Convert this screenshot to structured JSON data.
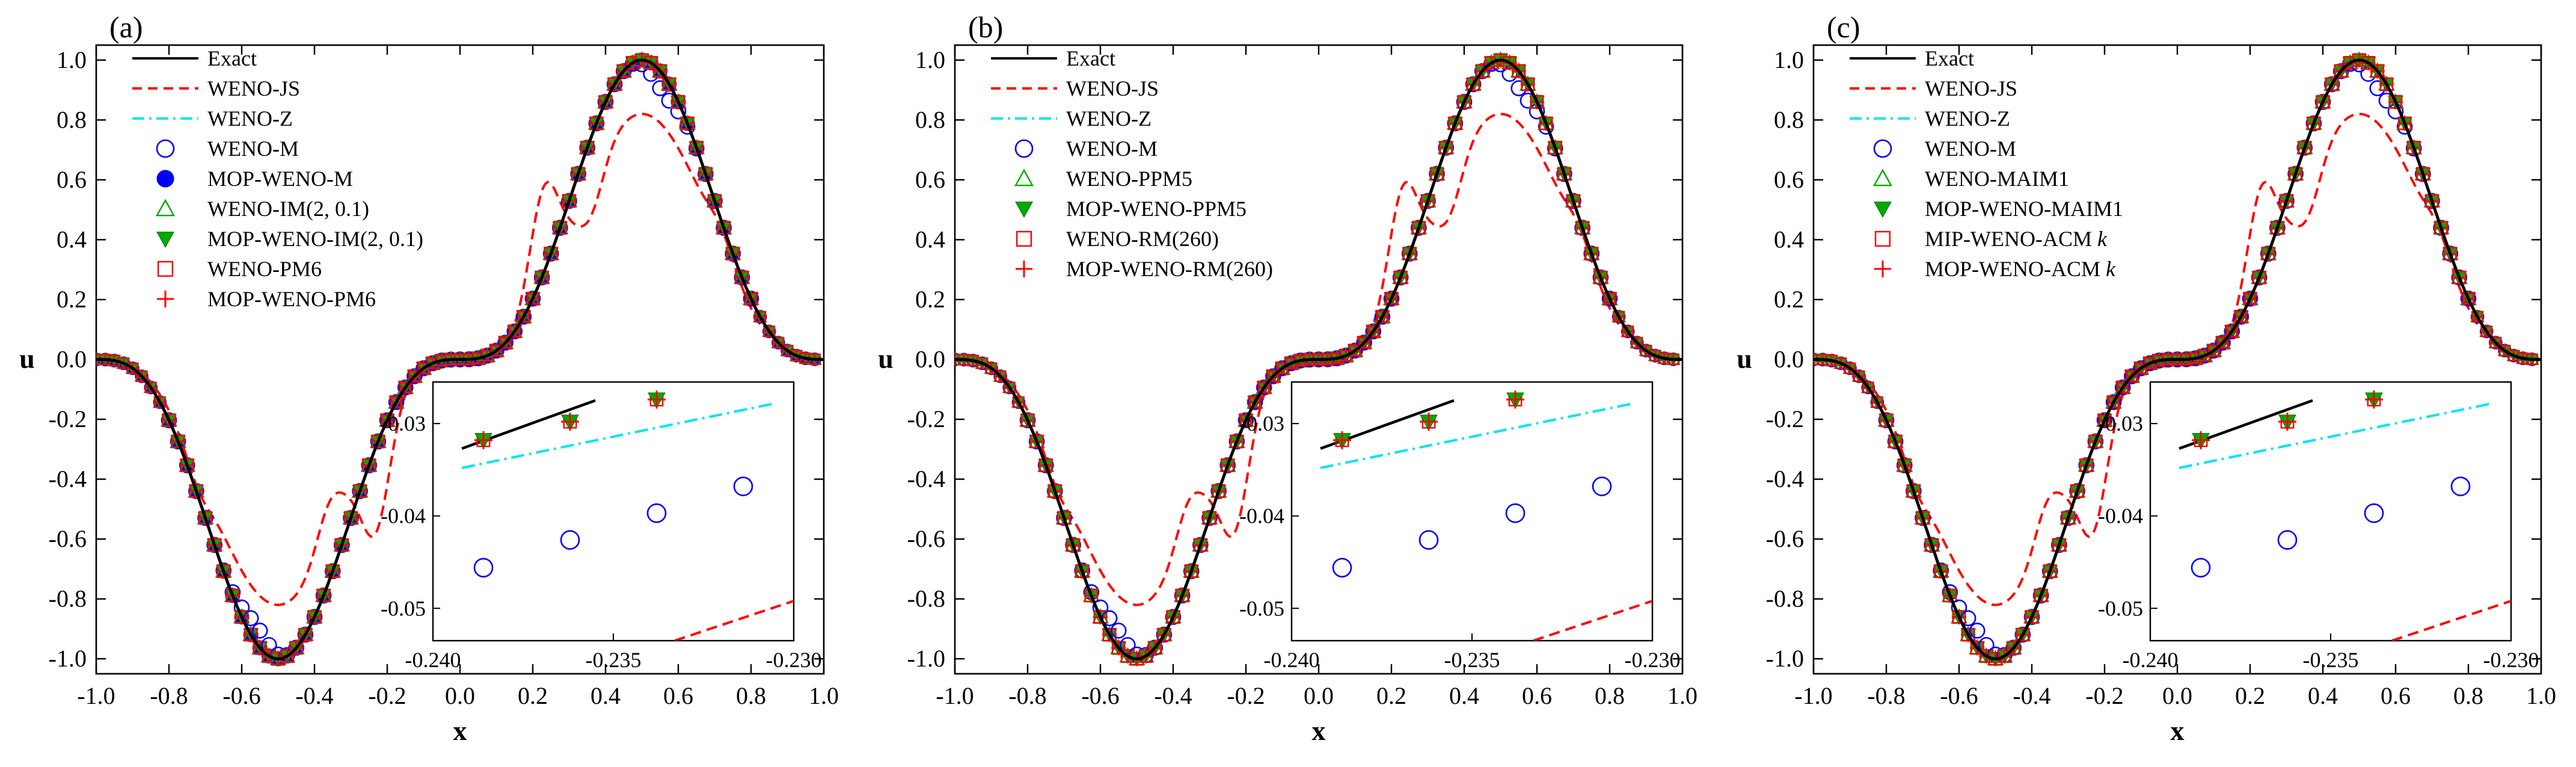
{
  "chart_data": [
    {
      "type": "line",
      "panel_label": "(a)",
      "xlabel": "x",
      "ylabel": "u",
      "xlim": [
        -1.0,
        1.0
      ],
      "ylim": [
        -1.05,
        1.05
      ],
      "xticks": [
        "-1.0",
        "-0.8",
        "-0.6",
        "-0.4",
        "-0.2",
        "0.0",
        "0.2",
        "0.4",
        "0.6",
        "0.8",
        "1.0"
      ],
      "yticks": [
        "-1.0",
        "-0.8",
        "-0.6",
        "-0.4",
        "-0.2",
        "0.0",
        "0.2",
        "0.4",
        "0.6",
        "0.8",
        "1.0"
      ],
      "legend": [
        "Exact",
        "WENO-JS",
        "WENO-Z",
        "WENO-M",
        "MOP-WENO-M",
        "WENO-IM(2, 0.1)",
        "MOP-WENO-IM(2, 0.1)",
        "WENO-PM6",
        "MOP-WENO-PM6"
      ],
      "legend_position": "top-left",
      "grid": false,
      "inset": {
        "xlim": [
          -0.24,
          -0.23
        ],
        "ylim": [
          -0.0535,
          -0.0255
        ],
        "xticks": [
          "-0.240",
          "-0.235",
          "-0.230"
        ],
        "yticks": [
          "-0.03",
          "-0.04",
          "-0.05"
        ],
        "position": "bottom-right"
      }
    },
    {
      "type": "line",
      "panel_label": "(b)",
      "xlabel": "x",
      "ylabel": "u",
      "xlim": [
        -1.0,
        1.0
      ],
      "ylim": [
        -1.05,
        1.05
      ],
      "xticks": [
        "-1.0",
        "-0.8",
        "-0.6",
        "-0.4",
        "-0.2",
        "0.0",
        "0.2",
        "0.4",
        "0.6",
        "0.8",
        "1.0"
      ],
      "yticks": [
        "-1.0",
        "-0.8",
        "-0.6",
        "-0.4",
        "-0.2",
        "0.0",
        "0.2",
        "0.4",
        "0.6",
        "0.8",
        "1.0"
      ],
      "legend": [
        "Exact",
        "WENO-JS",
        "WENO-Z",
        "WENO-M",
        "WENO-PPM5",
        "MOP-WENO-PPM5",
        "WENO-RM(260)",
        "MOP-WENO-RM(260)"
      ],
      "legend_position": "top-left",
      "grid": false,
      "inset": {
        "xlim": [
          -0.24,
          -0.23
        ],
        "ylim": [
          -0.0535,
          -0.0255
        ],
        "xticks": [
          "-0.240",
          "-0.235",
          "-0.230"
        ],
        "yticks": [
          "-0.03",
          "-0.04",
          "-0.05"
        ],
        "position": "bottom-right"
      }
    },
    {
      "type": "line",
      "panel_label": "(c)",
      "xlabel": "x",
      "ylabel": "u",
      "xlim": [
        -1.0,
        1.0
      ],
      "ylim": [
        -1.05,
        1.05
      ],
      "xticks": [
        "-1.0",
        "-0.8",
        "-0.6",
        "-0.4",
        "-0.2",
        "0.0",
        "0.2",
        "0.4",
        "0.6",
        "0.8",
        "1.0"
      ],
      "yticks": [
        "-1.0",
        "-0.8",
        "-0.6",
        "-0.4",
        "-0.2",
        "0.0",
        "0.2",
        "0.4",
        "0.6",
        "0.8",
        "1.0"
      ],
      "legend": [
        "Exact",
        "WENO-JS",
        "WENO-Z",
        "WENO-M",
        "WENO-MAIM1",
        "MOP-WENO-MAIM1",
        "MIP-WENO-ACMk",
        "MOP-WENO-ACMk"
      ],
      "legend_position": "top-left",
      "grid": false,
      "inset": {
        "xlim": [
          -0.24,
          -0.23
        ],
        "ylim": [
          -0.0535,
          -0.0255
        ],
        "xticks": [
          "-0.240",
          "-0.235",
          "-0.230"
        ],
        "yticks": [
          "-0.03",
          "-0.04",
          "-0.05"
        ],
        "position": "bottom-right"
      }
    }
  ],
  "series_style": {
    "Exact": {
      "color": "#000000",
      "dash": "solid"
    },
    "WENO-JS": {
      "color": "#ff0000",
      "dash": "dashed"
    },
    "WENO-Z": {
      "color": "#00e5ee",
      "dash": "dash-dot"
    },
    "WENO-M": {
      "color": "#0000ff",
      "marker": "open-circle"
    },
    "MOP": {
      "color": "#00aa00",
      "marker": "filled-triangle-down"
    },
    "overlay": {
      "color": "#ff0000",
      "marker": "plus"
    }
  },
  "inset_series": {
    "exact": {
      "x": [
        -0.2392,
        -0.2355
      ],
      "y": [
        -0.0327,
        -0.0275
      ]
    },
    "weno_z": {
      "x": [
        -0.2392,
        -0.2305
      ],
      "y": [
        -0.0348,
        -0.0278
      ]
    },
    "weno_js": {
      "x": [
        -0.2333,
        -0.23
      ],
      "y": [
        -0.0535,
        -0.0492
      ]
    },
    "weno_m_points": {
      "x": [
        -0.2386,
        -0.2362,
        -0.2338,
        -0.2314
      ],
      "y": [
        -0.0456,
        -0.0426,
        -0.0397,
        -0.0368
      ]
    },
    "converged_points": {
      "x": [
        -0.2386,
        -0.2362,
        -0.2338
      ],
      "y": [
        -0.0318,
        -0.0298,
        -0.0274
      ]
    }
  }
}
